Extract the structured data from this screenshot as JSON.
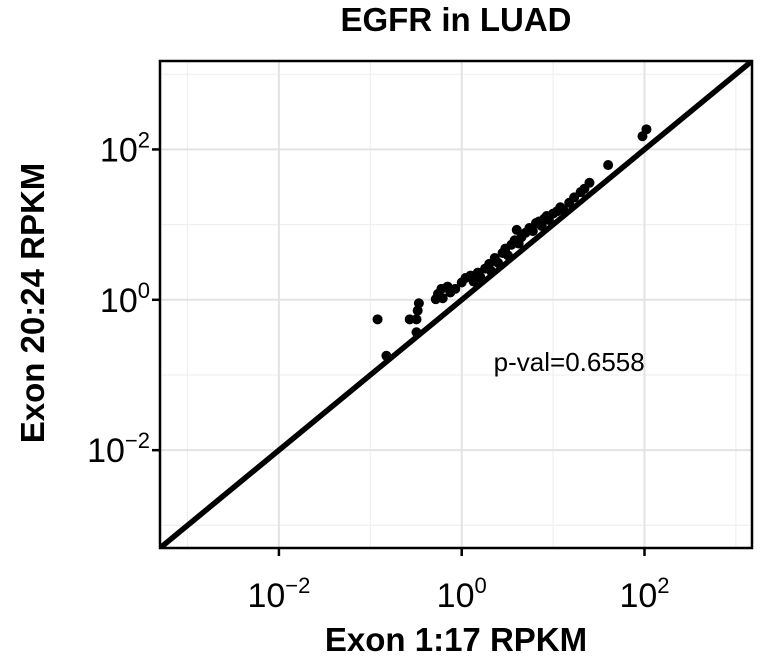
{
  "chart_data": {
    "type": "scatter",
    "title": "EGFR in LUAD",
    "xlabel": "Exon 1:17 RPKM",
    "ylabel": "Exon 20:24 RPKM",
    "x_scale": "log10",
    "y_scale": "log10",
    "xlim": [
      0.0005,
      1500
    ],
    "ylim": [
      0.0005,
      1500
    ],
    "grid": true,
    "x_ticks": [
      {
        "value": 0.01,
        "base": "10",
        "exp": "−2"
      },
      {
        "value": 1,
        "base": "10",
        "exp": "0"
      },
      {
        "value": 100,
        "base": "10",
        "exp": "2"
      }
    ],
    "y_ticks": [
      {
        "value": 100,
        "base": "10",
        "exp": "2"
      },
      {
        "value": 1,
        "base": "10",
        "exp": "0"
      },
      {
        "value": 0.01,
        "base": "10",
        "exp": "−2"
      }
    ],
    "annotation": {
      "text": "p-val=0.6558",
      "x": 15,
      "y": 0.15
    },
    "reference_line": {
      "slope": 1,
      "intercept": 0
    },
    "points": [
      {
        "x": 0.12,
        "y": 0.55
      },
      {
        "x": 0.15,
        "y": 0.18
      },
      {
        "x": 0.27,
        "y": 0.55
      },
      {
        "x": 0.32,
        "y": 0.55
      },
      {
        "x": 0.33,
        "y": 0.72
      },
      {
        "x": 0.34,
        "y": 0.9
      },
      {
        "x": 0.32,
        "y": 0.37
      },
      {
        "x": 0.52,
        "y": 1.02
      },
      {
        "x": 0.55,
        "y": 1.2
      },
      {
        "x": 0.6,
        "y": 1.4
      },
      {
        "x": 0.62,
        "y": 1.05
      },
      {
        "x": 0.7,
        "y": 1.5
      },
      {
        "x": 0.75,
        "y": 1.25
      },
      {
        "x": 0.85,
        "y": 1.4
      },
      {
        "x": 1.0,
        "y": 1.7
      },
      {
        "x": 1.1,
        "y": 1.95
      },
      {
        "x": 1.25,
        "y": 2.1
      },
      {
        "x": 1.35,
        "y": 1.75
      },
      {
        "x": 1.5,
        "y": 2.3
      },
      {
        "x": 1.6,
        "y": 2.0
      },
      {
        "x": 1.8,
        "y": 2.6
      },
      {
        "x": 2.0,
        "y": 3.0
      },
      {
        "x": 2.1,
        "y": 2.4
      },
      {
        "x": 2.3,
        "y": 3.6
      },
      {
        "x": 2.5,
        "y": 3.1
      },
      {
        "x": 2.8,
        "y": 4.2
      },
      {
        "x": 3.0,
        "y": 4.8
      },
      {
        "x": 3.2,
        "y": 3.9
      },
      {
        "x": 3.5,
        "y": 5.4
      },
      {
        "x": 3.8,
        "y": 6.2
      },
      {
        "x": 4.0,
        "y": 8.5
      },
      {
        "x": 4.2,
        "y": 5.6
      },
      {
        "x": 4.5,
        "y": 6.8
      },
      {
        "x": 5.0,
        "y": 7.8
      },
      {
        "x": 5.5,
        "y": 9.0
      },
      {
        "x": 6.0,
        "y": 8.2
      },
      {
        "x": 6.5,
        "y": 10.5
      },
      {
        "x": 7.0,
        "y": 11.0
      },
      {
        "x": 7.5,
        "y": 9.6
      },
      {
        "x": 8.0,
        "y": 12.0
      },
      {
        "x": 8.5,
        "y": 13.0
      },
      {
        "x": 9.0,
        "y": 11.5
      },
      {
        "x": 10.0,
        "y": 14.0
      },
      {
        "x": 11.0,
        "y": 15.0
      },
      {
        "x": 12.0,
        "y": 17.0
      },
      {
        "x": 13.0,
        "y": 15.5
      },
      {
        "x": 15.0,
        "y": 19.5
      },
      {
        "x": 17.0,
        "y": 23.0
      },
      {
        "x": 20.0,
        "y": 27.0
      },
      {
        "x": 22.0,
        "y": 30.0
      },
      {
        "x": 25.0,
        "y": 36.0
      },
      {
        "x": 40.0,
        "y": 62.0
      },
      {
        "x": 95.0,
        "y": 150.0
      },
      {
        "x": 105.0,
        "y": 185.0
      }
    ]
  }
}
